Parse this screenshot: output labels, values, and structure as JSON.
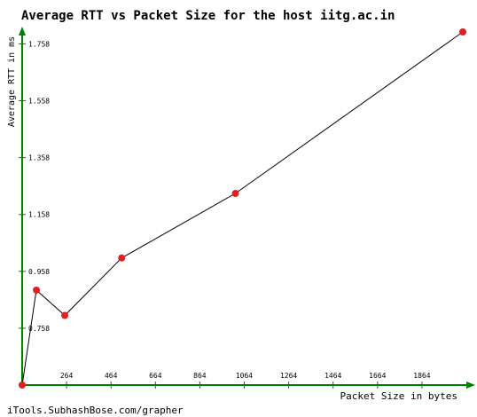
{
  "chart_data": {
    "type": "line",
    "title": "Average RTT vs Packet Size for the host iitg.ac.in",
    "xlabel": "Packet Size in bytes",
    "ylabel": "Average RTT in ms",
    "footer": "iTools.SubhashBose.com/grapher",
    "x_ticks": [
      "264",
      "464",
      "664",
      "864",
      "1064",
      "1264",
      "1464",
      "1664",
      "1864"
    ],
    "y_ticks": [
      "0.758",
      "0.958",
      "1.158",
      "1.358",
      "1.558",
      "1.758"
    ],
    "xlim": [
      64,
      2064
    ],
    "ylim": [
      0.558,
      1.8
    ],
    "grid": false,
    "series": [
      {
        "x": [
          64,
          128,
          256,
          512,
          1024,
          2048
        ],
        "y": [
          0.558,
          0.892,
          0.803,
          1.005,
          1.232,
          1.8
        ]
      }
    ],
    "colors": {
      "axis": "#008000",
      "line": "#000000",
      "marker": "#dd2222",
      "text": "#000000"
    }
  }
}
